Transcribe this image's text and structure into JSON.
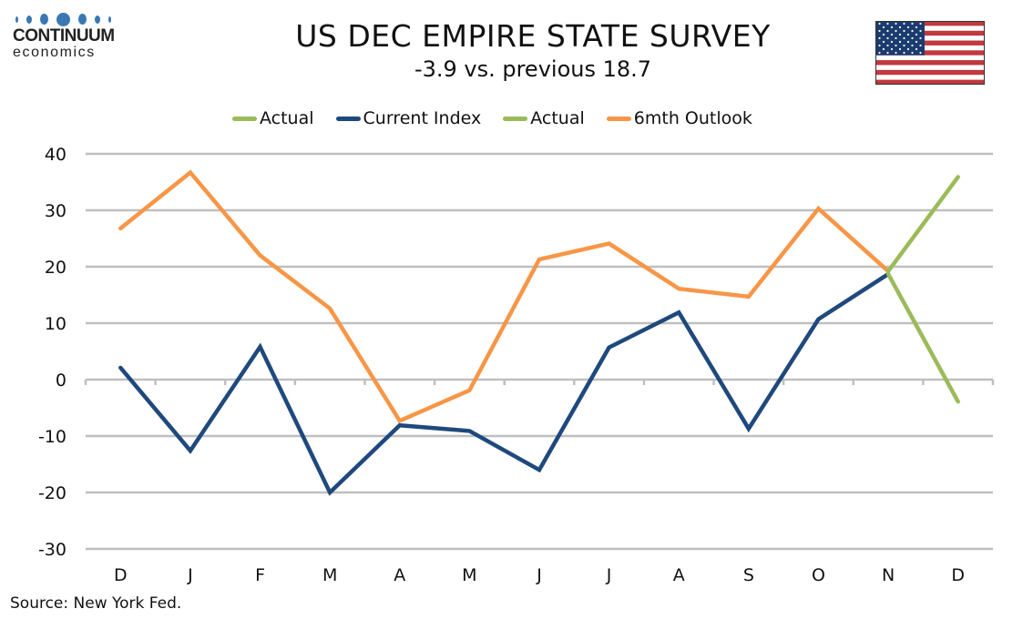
{
  "logo": {
    "line1": "CONTINUUM",
    "line2": "economics",
    "brand_color": "#3a78b3"
  },
  "flag": {
    "icon": "us-flag-icon"
  },
  "source": "Source: New York Fed.",
  "chart_data": {
    "type": "line",
    "title": "US DEC EMPIRE STATE SURVEY",
    "subtitle": "-3.9 vs. previous 18.7",
    "xlabel": "",
    "ylabel": "",
    "categories": [
      "D",
      "J",
      "F",
      "M",
      "A",
      "M",
      "J",
      "J",
      "A",
      "S",
      "O",
      "N",
      "D"
    ],
    "ylim": [
      -30,
      40
    ],
    "yticks": [
      40,
      30,
      20,
      10,
      0,
      -10,
      -20,
      -30
    ],
    "grid": true,
    "legend_position": "top-center",
    "series": [
      {
        "name": "Actual",
        "color": "#9bbb59",
        "values": [
          null,
          null,
          null,
          null,
          null,
          null,
          null,
          null,
          null,
          null,
          null,
          18.7,
          -3.9
        ]
      },
      {
        "name": "Current Index",
        "color": "#1f497d",
        "values": [
          2.1,
          -12.6,
          5.8,
          -20.0,
          -8.1,
          -9.1,
          -16.0,
          5.7,
          11.9,
          -8.7,
          10.7,
          18.7,
          null
        ]
      },
      {
        "name": "Actual",
        "color": "#9bbb59",
        "values": [
          null,
          null,
          null,
          null,
          null,
          null,
          null,
          null,
          null,
          null,
          null,
          19.2,
          35.9
        ]
      },
      {
        "name": "6mth Outlook",
        "color": "#f79646",
        "values": [
          26.8,
          36.7,
          22.0,
          12.6,
          -7.3,
          -1.9,
          21.3,
          24.1,
          16.1,
          14.7,
          30.3,
          19.2,
          null
        ]
      }
    ]
  }
}
